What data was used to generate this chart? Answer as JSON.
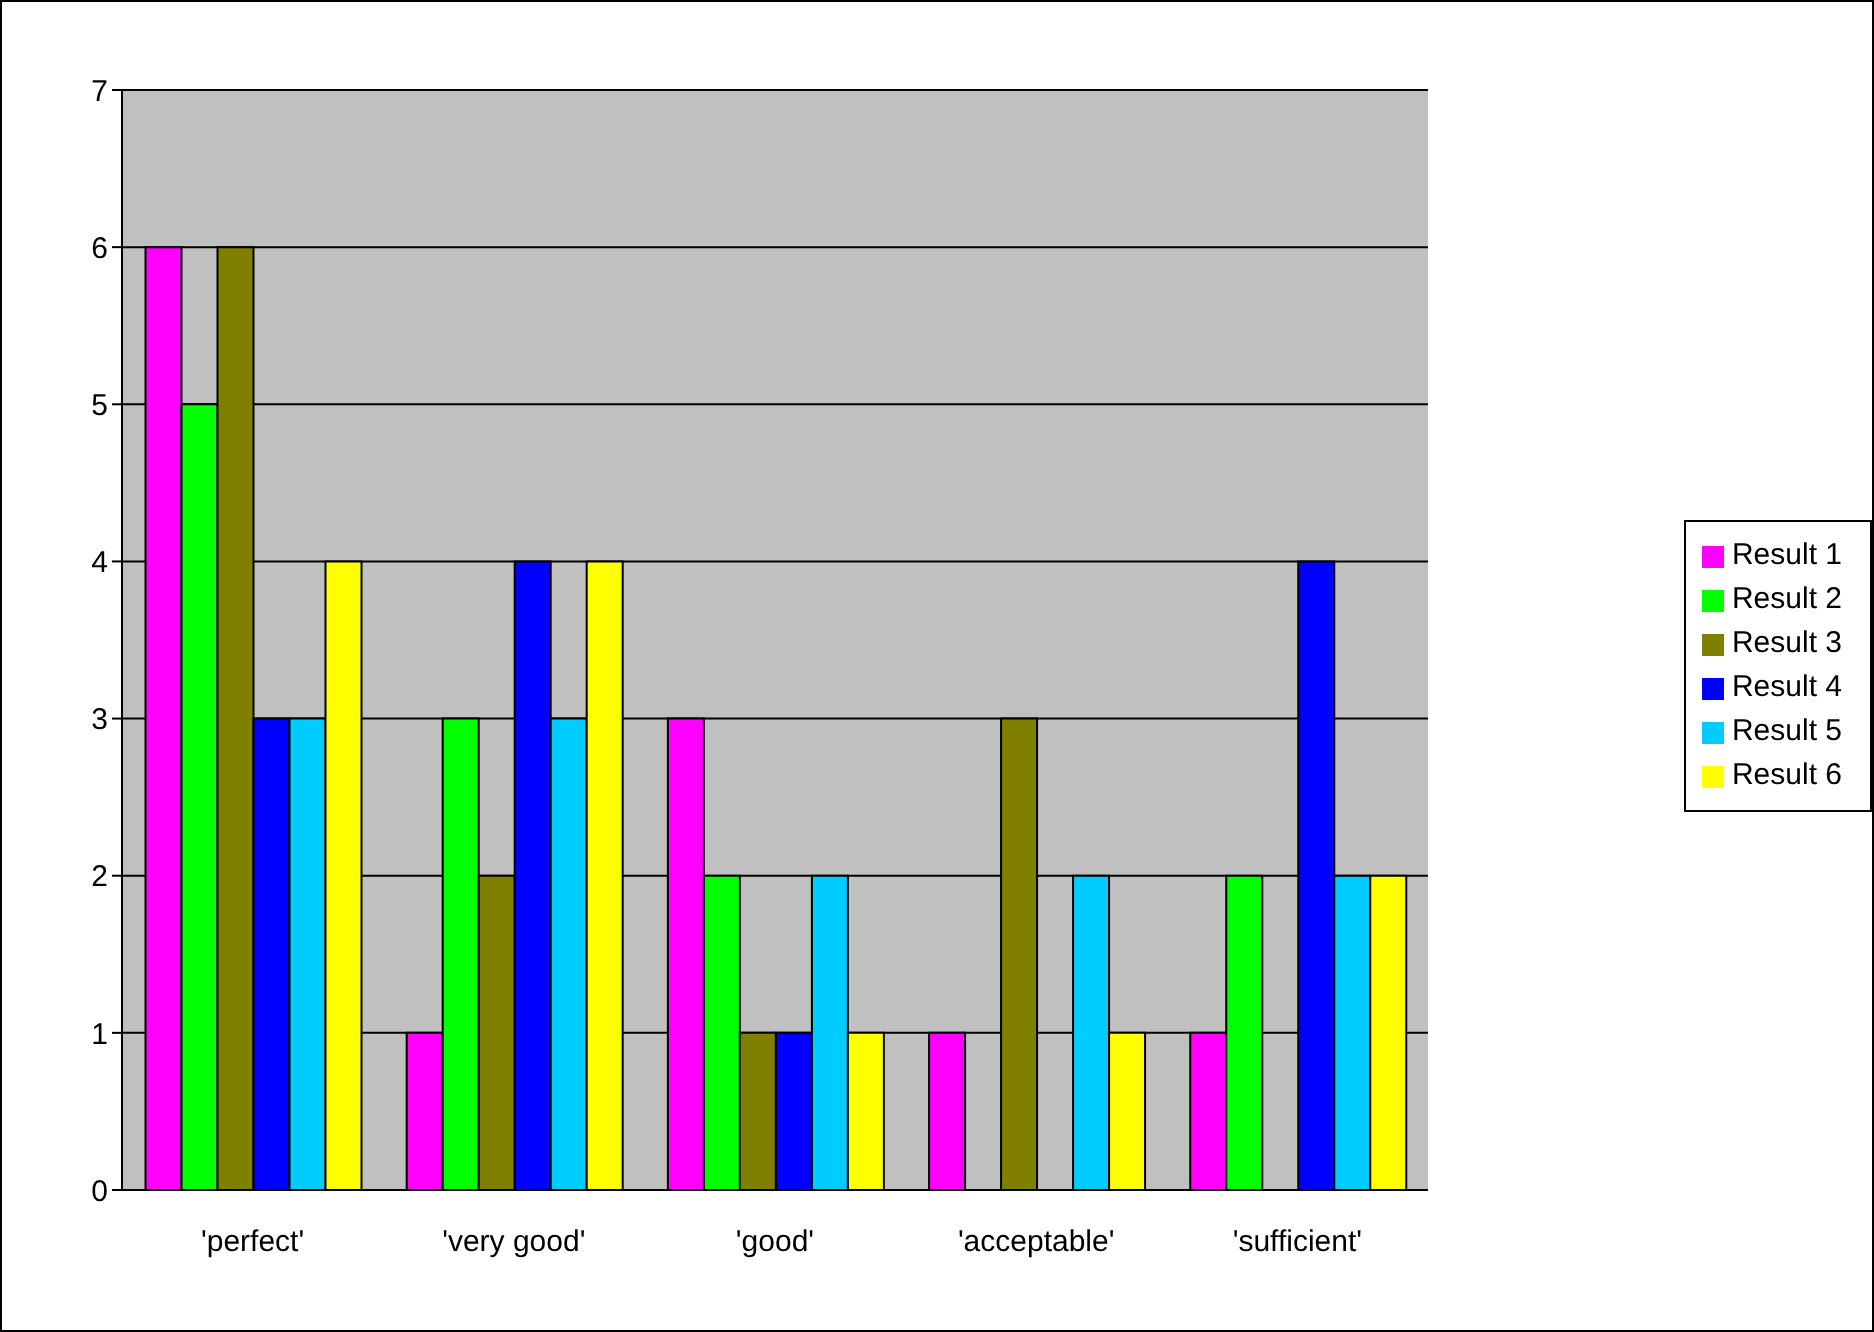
{
  "chart_data": {
    "type": "bar",
    "categories": [
      "'perfect'",
      "'very good'",
      "'good'",
      "'acceptable'",
      "'sufficient'"
    ],
    "series": [
      {
        "name": "Result 1",
        "color": "#ff00ff",
        "values": [
          6,
          1,
          3,
          1,
          1
        ]
      },
      {
        "name": "Result 2",
        "color": "#00ff00",
        "values": [
          5,
          3,
          2,
          0,
          2
        ]
      },
      {
        "name": "Result 3",
        "color": "#808000",
        "values": [
          6,
          2,
          1,
          3,
          0
        ]
      },
      {
        "name": "Result 4",
        "color": "#0000ff",
        "values": [
          3,
          4,
          1,
          0,
          4
        ]
      },
      {
        "name": "Result 5",
        "color": "#00ccff",
        "values": [
          3,
          3,
          2,
          2,
          2
        ]
      },
      {
        "name": "Result 6",
        "color": "#ffff00",
        "values": [
          4,
          4,
          1,
          1,
          2
        ]
      }
    ],
    "ylim": [
      0,
      7
    ],
    "yticks": [
      0,
      1,
      2,
      3,
      4,
      5,
      6,
      7
    ],
    "grid": "y",
    "legend": "right"
  }
}
